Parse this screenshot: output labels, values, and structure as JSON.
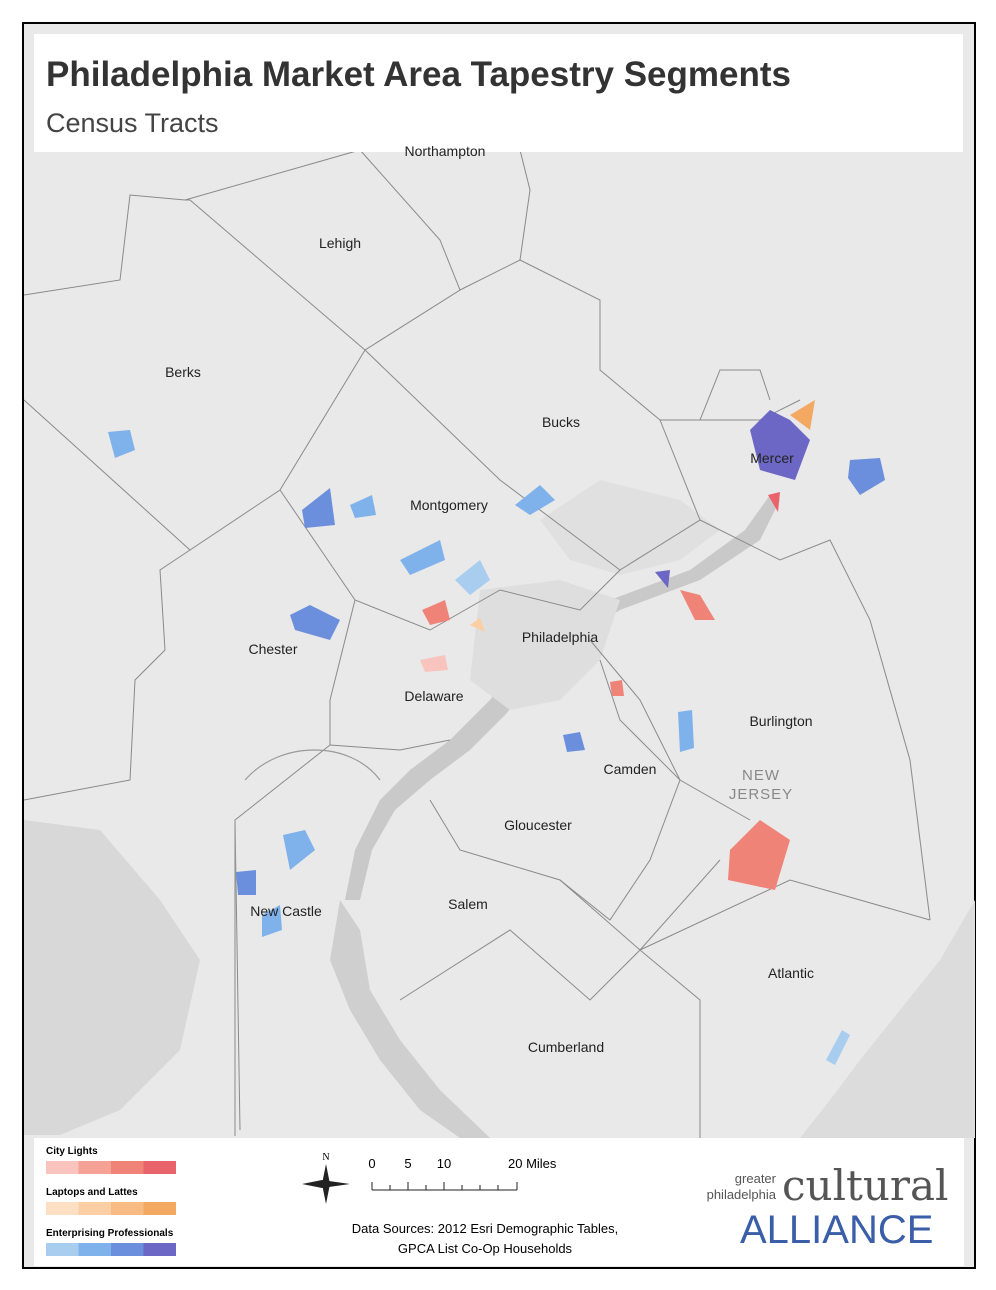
{
  "header": {
    "title": "Philadelphia Market Area Tapestry Segments",
    "subtitle": "Census Tracts"
  },
  "map": {
    "labels": [
      "Northampton",
      "Lehigh",
      "Berks",
      "Bucks",
      "Montgomery",
      "Mercer",
      "Chester",
      "Philadelphia",
      "Delaware",
      "Burlington",
      "Camden",
      "Gloucester",
      "New Castle",
      "Salem",
      "Atlantic",
      "Cumberland"
    ],
    "state_label": [
      "NEW",
      "JERSEY"
    ]
  },
  "legend": {
    "items": [
      {
        "label": "City Lights",
        "colors": [
          "#f9c4bd",
          "#f5a196",
          "#f08378",
          "#e8636a"
        ]
      },
      {
        "label": "Laptops and Lattes",
        "colors": [
          "#fde0c4",
          "#fbcfa3",
          "#f8bb84",
          "#f4a963"
        ]
      },
      {
        "label": "Enterprising Professionals",
        "colors": [
          "#a9cdef",
          "#7fb1ea",
          "#6b8fdc",
          "#6c67c4"
        ]
      }
    ]
  },
  "scale": {
    "north": "N",
    "ticks": [
      "0",
      "5",
      "10",
      "20 Miles"
    ]
  },
  "sources": [
    "Data Sources: 2012 Esri Demographic Tables,",
    "GPCA List Co-Op Households"
  ],
  "logo": {
    "small": [
      "greater",
      "philadelphia"
    ],
    "big": [
      "cultural",
      "ALLIANCE"
    ]
  }
}
